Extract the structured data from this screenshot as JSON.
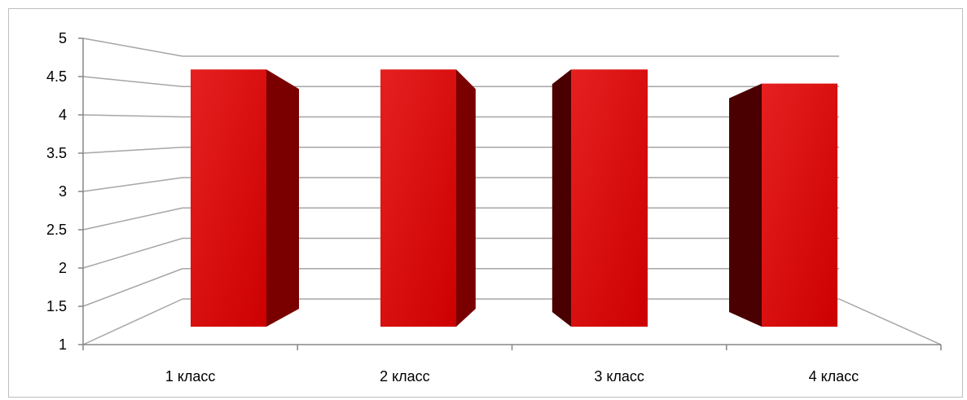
{
  "chart_data": {
    "type": "bar",
    "style": "3d-column",
    "categories": [
      "1 класс",
      "2 класс",
      "3 класс",
      "4 класс"
    ],
    "values": [
      4.65,
      4.65,
      4.65,
      4.45
    ],
    "y_ticks": [
      "1",
      "1.5",
      "2",
      "2.5",
      "3",
      "3.5",
      "4",
      "4.5",
      "5"
    ],
    "ylim": [
      1,
      5
    ],
    "grid": true,
    "legend": "none",
    "colors": {
      "bar_front": "#cc0000",
      "bar_front_light": "#e52020",
      "bar_side": "#7a0000",
      "bar_side_dark": "#4a0000",
      "grid": "#a6a6a6"
    }
  }
}
